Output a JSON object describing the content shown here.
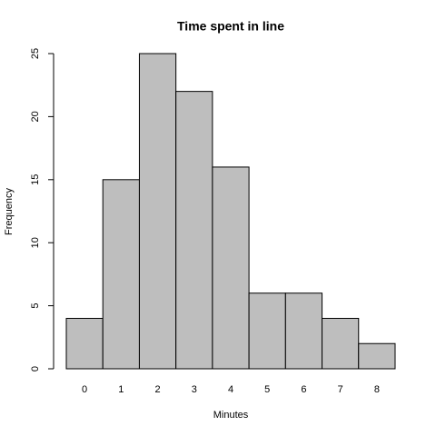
{
  "chart_data": {
    "type": "bar",
    "title": "Time spent in line",
    "x_label": "Minutes",
    "y_label": "Frequency",
    "categories": [
      "0",
      "1",
      "2",
      "3",
      "4",
      "5",
      "6",
      "7",
      "8"
    ],
    "values": [
      4,
      15,
      25,
      22,
      16,
      6,
      6,
      4,
      2
    ],
    "color": "#bebebe",
    "ylim": [
      0,
      25
    ],
    "yticks": [
      0,
      5,
      10,
      15,
      20,
      25
    ],
    "grid": false
  }
}
